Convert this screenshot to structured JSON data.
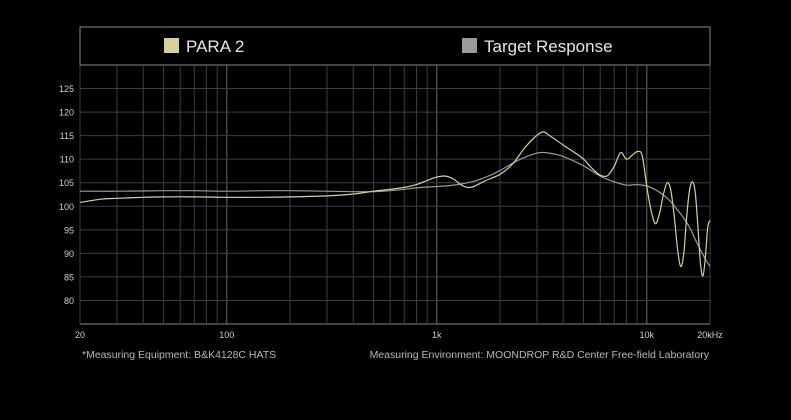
{
  "chart_data": {
    "type": "line",
    "title": "",
    "xlabel": "",
    "ylabel": "",
    "x_scale": "log",
    "xlim": [
      20,
      20000
    ],
    "ylim": [
      75,
      130
    ],
    "grid": true,
    "legend_position": "top",
    "y_ticks": [
      80,
      85,
      90,
      95,
      100,
      105,
      110,
      115,
      120,
      125
    ],
    "x_ticks": [
      {
        "value": 20,
        "label": "20"
      },
      {
        "value": 100,
        "label": "100"
      },
      {
        "value": 1000,
        "label": "1k"
      },
      {
        "value": 10000,
        "label": "10k"
      },
      {
        "value": 20000,
        "label": "20kHz"
      }
    ],
    "series": [
      {
        "name": "PARA 2",
        "color": "#d9cf9c",
        "points": [
          [
            20,
            100.8
          ],
          [
            25,
            101.5
          ],
          [
            30,
            101.7
          ],
          [
            40,
            101.9
          ],
          [
            50,
            102.0
          ],
          [
            70,
            102.0
          ],
          [
            100,
            101.9
          ],
          [
            150,
            101.9
          ],
          [
            200,
            102.0
          ],
          [
            300,
            102.2
          ],
          [
            400,
            102.6
          ],
          [
            500,
            103.2
          ],
          [
            600,
            103.6
          ],
          [
            700,
            104.0
          ],
          [
            800,
            104.6
          ],
          [
            900,
            105.5
          ],
          [
            1000,
            106.2
          ],
          [
            1100,
            106.4
          ],
          [
            1200,
            105.8
          ],
          [
            1300,
            104.6
          ],
          [
            1400,
            104.0
          ],
          [
            1500,
            104.2
          ],
          [
            1700,
            105.4
          ],
          [
            2000,
            106.8
          ],
          [
            2300,
            109.0
          ],
          [
            2600,
            112.2
          ],
          [
            2900,
            114.5
          ],
          [
            3200,
            115.8
          ],
          [
            3500,
            114.8
          ],
          [
            4000,
            113.0
          ],
          [
            4500,
            111.5
          ],
          [
            5000,
            110.0
          ],
          [
            5500,
            108.0
          ],
          [
            6000,
            106.6
          ],
          [
            6500,
            106.5
          ],
          [
            7000,
            108.5
          ],
          [
            7500,
            111.4
          ],
          [
            8000,
            110.0
          ],
          [
            8500,
            110.8
          ],
          [
            9000,
            111.6
          ],
          [
            9500,
            110.8
          ],
          [
            10000,
            104.2
          ],
          [
            10500,
            99.0
          ],
          [
            11000,
            96.3
          ],
          [
            11500,
            98.5
          ],
          [
            12000,
            102.5
          ],
          [
            12500,
            105.0
          ],
          [
            13000,
            103.5
          ],
          [
            13500,
            98.0
          ],
          [
            14000,
            91.0
          ],
          [
            14500,
            87.2
          ],
          [
            15000,
            90.0
          ],
          [
            15500,
            98.0
          ],
          [
            16000,
            103.5
          ],
          [
            16500,
            105.2
          ],
          [
            17000,
            103.0
          ],
          [
            17500,
            96.0
          ],
          [
            18000,
            88.0
          ],
          [
            18500,
            85.2
          ],
          [
            19000,
            89.0
          ],
          [
            19500,
            95.5
          ],
          [
            20000,
            97.0
          ]
        ]
      },
      {
        "name": "Target Response",
        "color": "#9a9a9a",
        "points": [
          [
            20,
            103.2
          ],
          [
            30,
            103.2
          ],
          [
            50,
            103.3
          ],
          [
            70,
            103.3
          ],
          [
            100,
            103.2
          ],
          [
            150,
            103.3
          ],
          [
            200,
            103.3
          ],
          [
            300,
            103.2
          ],
          [
            400,
            103.1
          ],
          [
            500,
            103.1
          ],
          [
            600,
            103.3
          ],
          [
            700,
            103.6
          ],
          [
            800,
            103.9
          ],
          [
            900,
            104.1
          ],
          [
            1000,
            104.2
          ],
          [
            1200,
            104.5
          ],
          [
            1500,
            105.3
          ],
          [
            1800,
            106.6
          ],
          [
            2000,
            107.6
          ],
          [
            2500,
            110.0
          ],
          [
            3000,
            111.3
          ],
          [
            3300,
            111.4
          ],
          [
            3700,
            111.0
          ],
          [
            4000,
            110.6
          ],
          [
            5000,
            108.6
          ],
          [
            6000,
            106.4
          ],
          [
            7000,
            105.2
          ],
          [
            8000,
            104.5
          ],
          [
            9000,
            104.6
          ],
          [
            10000,
            104.3
          ],
          [
            11000,
            103.5
          ],
          [
            12000,
            102.4
          ],
          [
            13000,
            101.0
          ],
          [
            14000,
            99.2
          ],
          [
            15000,
            97.5
          ],
          [
            16000,
            95.5
          ],
          [
            17000,
            93.0
          ],
          [
            18000,
            90.8
          ],
          [
            19000,
            88.8
          ],
          [
            20000,
            87.2
          ]
        ]
      }
    ]
  },
  "footer": {
    "equipment": "*Measuring Equipment: B&K4128C HATS",
    "environment": "Measuring Environment: MOONDROP R&D Center Free-field Laboratory"
  }
}
